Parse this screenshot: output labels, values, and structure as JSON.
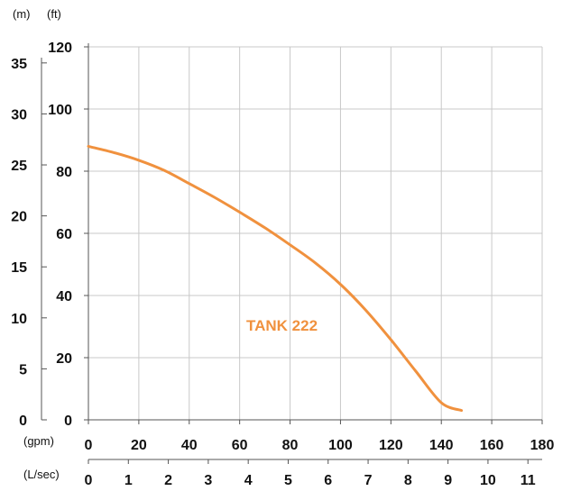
{
  "chart_data": {
    "type": "line",
    "units": {
      "y_m": "(m)",
      "y_ft": "(ft)",
      "x_gpm": "(gpm)",
      "x_lsec": "(L/sec)"
    },
    "axes": {
      "y_m": {
        "ticks": [
          "0",
          "5",
          "10",
          "15",
          "20",
          "25",
          "30",
          "35"
        ],
        "range": [
          0,
          36.576
        ]
      },
      "y_ft": {
        "ticks": [
          "0",
          "20",
          "40",
          "60",
          "80",
          "100",
          "120"
        ],
        "range": [
          0,
          120
        ]
      },
      "x_gpm": {
        "ticks": [
          "0",
          "20",
          "40",
          "60",
          "80",
          "100",
          "120",
          "140",
          "160",
          "180"
        ],
        "range": [
          0,
          180
        ]
      },
      "x_lsec": {
        "ticks": [
          "0",
          "1",
          "2",
          "3",
          "4",
          "5",
          "6",
          "7",
          "8",
          "9",
          "10",
          "11"
        ],
        "range": [
          0,
          11.356
        ]
      }
    },
    "grid": true,
    "series": [
      {
        "name": "TANK 222",
        "color": "#f0913e",
        "x_gpm": [
          0,
          10,
          20,
          30,
          40,
          50,
          60,
          70,
          80,
          90,
          100,
          110,
          120,
          130,
          140,
          148
        ],
        "y_ft": [
          88,
          86,
          83.5,
          80.3,
          76,
          71.6,
          66.8,
          61.8,
          56.3,
          50.5,
          43.6,
          35.3,
          25.8,
          15.5,
          5.5,
          3
        ]
      }
    ]
  }
}
